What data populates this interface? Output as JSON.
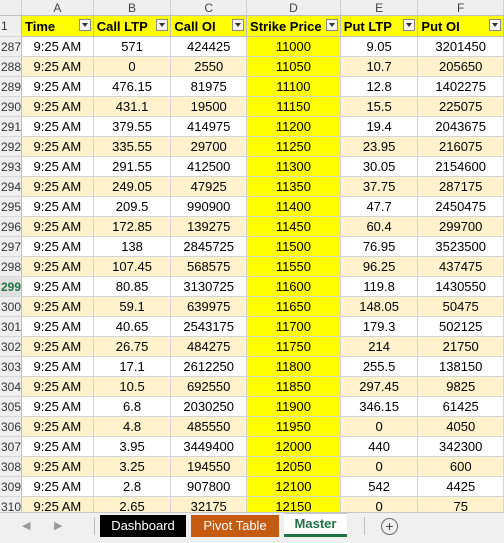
{
  "columns": [
    "A",
    "B",
    "C",
    "D",
    "E",
    "F"
  ],
  "header_row_number": "1",
  "headers": [
    "Time",
    "Call LTP",
    "Call OI",
    "Strike Price",
    "Put LTP",
    "Put OI"
  ],
  "selected_row": "299",
  "rows": [
    {
      "n": "287",
      "time": "9:25 AM",
      "call_ltp": "571",
      "call_oi": "424425",
      "strike": "11000",
      "put_ltp": "9.05",
      "put_oi": "3201450"
    },
    {
      "n": "288",
      "time": "9:25 AM",
      "call_ltp": "0",
      "call_oi": "2550",
      "strike": "11050",
      "put_ltp": "10.7",
      "put_oi": "205650"
    },
    {
      "n": "289",
      "time": "9:25 AM",
      "call_ltp": "476.15",
      "call_oi": "81975",
      "strike": "11100",
      "put_ltp": "12.8",
      "put_oi": "1402275"
    },
    {
      "n": "290",
      "time": "9:25 AM",
      "call_ltp": "431.1",
      "call_oi": "19500",
      "strike": "11150",
      "put_ltp": "15.5",
      "put_oi": "225075"
    },
    {
      "n": "291",
      "time": "9:25 AM",
      "call_ltp": "379.55",
      "call_oi": "414975",
      "strike": "11200",
      "put_ltp": "19.4",
      "put_oi": "2043675"
    },
    {
      "n": "292",
      "time": "9:25 AM",
      "call_ltp": "335.55",
      "call_oi": "29700",
      "strike": "11250",
      "put_ltp": "23.95",
      "put_oi": "216075"
    },
    {
      "n": "293",
      "time": "9:25 AM",
      "call_ltp": "291.55",
      "call_oi": "412500",
      "strike": "11300",
      "put_ltp": "30.05",
      "put_oi": "2154600"
    },
    {
      "n": "294",
      "time": "9:25 AM",
      "call_ltp": "249.05",
      "call_oi": "47925",
      "strike": "11350",
      "put_ltp": "37.75",
      "put_oi": "287175"
    },
    {
      "n": "295",
      "time": "9:25 AM",
      "call_ltp": "209.5",
      "call_oi": "990900",
      "strike": "11400",
      "put_ltp": "47.7",
      "put_oi": "2450475"
    },
    {
      "n": "296",
      "time": "9:25 AM",
      "call_ltp": "172.85",
      "call_oi": "139275",
      "strike": "11450",
      "put_ltp": "60.4",
      "put_oi": "299700"
    },
    {
      "n": "297",
      "time": "9:25 AM",
      "call_ltp": "138",
      "call_oi": "2845725",
      "strike": "11500",
      "put_ltp": "76.95",
      "put_oi": "3523500"
    },
    {
      "n": "298",
      "time": "9:25 AM",
      "call_ltp": "107.45",
      "call_oi": "568575",
      "strike": "11550",
      "put_ltp": "96.25",
      "put_oi": "437475"
    },
    {
      "n": "299",
      "time": "9:25 AM",
      "call_ltp": "80.85",
      "call_oi": "3130725",
      "strike": "11600",
      "put_ltp": "119.8",
      "put_oi": "1430550"
    },
    {
      "n": "300",
      "time": "9:25 AM",
      "call_ltp": "59.1",
      "call_oi": "639975",
      "strike": "11650",
      "put_ltp": "148.05",
      "put_oi": "50475"
    },
    {
      "n": "301",
      "time": "9:25 AM",
      "call_ltp": "40.65",
      "call_oi": "2543175",
      "strike": "11700",
      "put_ltp": "179.3",
      "put_oi": "502125"
    },
    {
      "n": "302",
      "time": "9:25 AM",
      "call_ltp": "26.75",
      "call_oi": "484275",
      "strike": "11750",
      "put_ltp": "214",
      "put_oi": "21750"
    },
    {
      "n": "303",
      "time": "9:25 AM",
      "call_ltp": "17.1",
      "call_oi": "2612250",
      "strike": "11800",
      "put_ltp": "255.5",
      "put_oi": "138150"
    },
    {
      "n": "304",
      "time": "9:25 AM",
      "call_ltp": "10.5",
      "call_oi": "692550",
      "strike": "11850",
      "put_ltp": "297.45",
      "put_oi": "9825"
    },
    {
      "n": "305",
      "time": "9:25 AM",
      "call_ltp": "6.8",
      "call_oi": "2030250",
      "strike": "11900",
      "put_ltp": "346.15",
      "put_oi": "61425"
    },
    {
      "n": "306",
      "time": "9:25 AM",
      "call_ltp": "4.8",
      "call_oi": "485550",
      "strike": "11950",
      "put_ltp": "0",
      "put_oi": "4050"
    },
    {
      "n": "307",
      "time": "9:25 AM",
      "call_ltp": "3.95",
      "call_oi": "3449400",
      "strike": "12000",
      "put_ltp": "440",
      "put_oi": "342300"
    },
    {
      "n": "308",
      "time": "9:25 AM",
      "call_ltp": "3.25",
      "call_oi": "194550",
      "strike": "12050",
      "put_ltp": "0",
      "put_oi": "600"
    },
    {
      "n": "309",
      "time": "9:25 AM",
      "call_ltp": "2.8",
      "call_oi": "907800",
      "strike": "12100",
      "put_ltp": "542",
      "put_oi": "4425"
    },
    {
      "n": "310",
      "time": "9:25 AM",
      "call_ltp": "2.65",
      "call_oi": "32175",
      "strike": "12150",
      "put_ltp": "0",
      "put_oi": "75"
    }
  ],
  "tabs": [
    {
      "label": "Dashboard",
      "color": "#000000"
    },
    {
      "label": "Pivot Table",
      "color": "#c55a11"
    },
    {
      "label": "Master",
      "color": "#ffffff",
      "active": true
    }
  ],
  "nav": {
    "prev": "◀",
    "next": "▶",
    "add": "+"
  },
  "colors": {
    "header_fill": "#ffff00",
    "band_fill": "#fff2cc",
    "strike_fill": "#ffff00",
    "active_tab_text": "#217346"
  }
}
